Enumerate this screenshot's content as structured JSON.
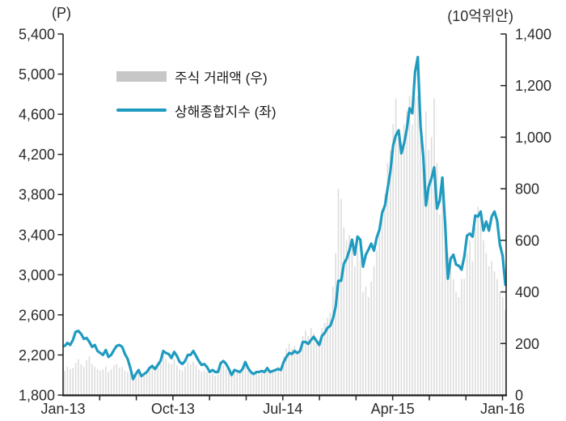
{
  "units": {
    "left": "(P)",
    "right": "(10억위안)"
  },
  "legend": [
    {
      "label": "주식 거래액 (우)",
      "swatch": "bar",
      "color": "#c7c7c7"
    },
    {
      "label": "상해종합지수 (좌)",
      "swatch": "line",
      "color": "#1f9bc0"
    }
  ],
  "colors": {
    "line": "#1f9bc0",
    "bars": "#dcdcdc",
    "axis": "#262626",
    "text": "#2b2b2b"
  },
  "chart_data": {
    "type": "line+bar",
    "x_domain": {
      "start": "Jan-13",
      "end": "Jan-16",
      "months": 36,
      "resolution": "weekly"
    },
    "x_tick_labels": [
      "Jan-13",
      "Oct-13",
      "Jul-14",
      "Apr-15",
      "Jan-16"
    ],
    "x_label_months": [
      0,
      9,
      18,
      27,
      36
    ],
    "x_minor_tick_every_months": 3,
    "left_axis": {
      "label": "(P)",
      "min": 1800,
      "max": 5400,
      "step": 400,
      "ticks": [
        "5,400",
        "5,000",
        "4,600",
        "4,200",
        "3,800",
        "3,400",
        "3,000",
        "2,600",
        "2,200",
        "1,800"
      ]
    },
    "right_axis": {
      "label": "(10억위안)",
      "min": 0,
      "max": 1400,
      "step": 200,
      "ticks": [
        "1,400",
        "1,200",
        "1,000",
        "800",
        "600",
        "400",
        "200",
        "0"
      ]
    },
    "grid": false,
    "legend_position": "top-left-inside",
    "series": [
      {
        "name": "주식 거래액 (우)",
        "type": "bar",
        "axis": "right",
        "color": "#dcdcdc",
        "values": [
          95,
          110,
          100,
          105,
          125,
          140,
          120,
          110,
          135,
          150,
          120,
          110,
          100,
          95,
          100,
          110,
          90,
          100,
          115,
          120,
          105,
          110,
          95,
          90,
          85,
          80,
          85,
          95,
          80,
          85,
          95,
          110,
          120,
          100,
          115,
          130,
          160,
          140,
          125,
          120,
          140,
          115,
          100,
          95,
          110,
          130,
          120,
          130,
          115,
          100,
          90,
          95,
          90,
          80,
          85,
          75,
          80,
          110,
          115,
          100,
          95,
          85,
          100,
          95,
          90,
          100,
          120,
          95,
          85,
          80,
          85,
          80,
          85,
          85,
          100,
          90,
          95,
          100,
          110,
          105,
          150,
          180,
          200,
          180,
          190,
          170,
          185,
          230,
          250,
          230,
          260,
          240,
          220,
          200,
          260,
          280,
          300,
          320,
          420,
          550,
          800,
          760,
          650,
          600,
          620,
          580,
          500,
          560,
          520,
          400,
          420,
          380,
          440,
          500,
          560,
          620,
          720,
          780,
          900,
          950,
          1050,
          1150,
          1000,
          980,
          1050,
          1100,
          1160,
          1050,
          1150,
          1160,
          1000,
          900,
          1100,
          950,
          1000,
          1150,
          900,
          700,
          800,
          650,
          550,
          500,
          450,
          400,
          380,
          450,
          450,
          550,
          600,
          520,
          650,
          730,
          700,
          600,
          550,
          500,
          520,
          480,
          450,
          400,
          380,
          330
        ]
      },
      {
        "name": "상해종합지수 (좌)",
        "type": "line",
        "axis": "left",
        "color": "#1f9bc0",
        "values": [
          2290,
          2320,
          2300,
          2350,
          2430,
          2440,
          2410,
          2360,
          2370,
          2330,
          2280,
          2300,
          2240,
          2220,
          2200,
          2250,
          2180,
          2200,
          2250,
          2290,
          2300,
          2280,
          2210,
          2160,
          2070,
          1960,
          2010,
          2050,
          1990,
          2010,
          2030,
          2070,
          2090,
          2060,
          2100,
          2140,
          2240,
          2220,
          2210,
          2170,
          2230,
          2190,
          2130,
          2110,
          2140,
          2200,
          2200,
          2240,
          2190,
          2140,
          2100,
          2110,
          2080,
          2030,
          2050,
          2030,
          2030,
          2120,
          2140,
          2110,
          2060,
          2000,
          2050,
          2040,
          2030,
          2060,
          2130,
          2070,
          2030,
          2010,
          2030,
          2030,
          2040,
          2030,
          2070,
          2030,
          2040,
          2050,
          2060,
          2050,
          2130,
          2180,
          2220,
          2210,
          2240,
          2220,
          2240,
          2330,
          2330,
          2310,
          2350,
          2380,
          2340,
          2300,
          2390,
          2420,
          2470,
          2490,
          2560,
          2680,
          2940,
          2940,
          3110,
          3160,
          3240,
          3350,
          3200,
          3380,
          3350,
          3080,
          3200,
          3250,
          3310,
          3240,
          3370,
          3450,
          3620,
          3690,
          3860,
          4030,
          4290,
          4390,
          4440,
          4210,
          4310,
          4450,
          4660,
          4610,
          5020,
          5170,
          4480,
          4190,
          3690,
          3880,
          3960,
          4070,
          3660,
          3740,
          3970,
          3510,
          2960,
          3160,
          3200,
          3100,
          3090,
          3050,
          3180,
          3390,
          3410,
          3380,
          3590,
          3580,
          3630,
          3440,
          3530,
          3440,
          3580,
          3630,
          3540,
          3300,
          3190,
          2900
        ]
      }
    ]
  }
}
